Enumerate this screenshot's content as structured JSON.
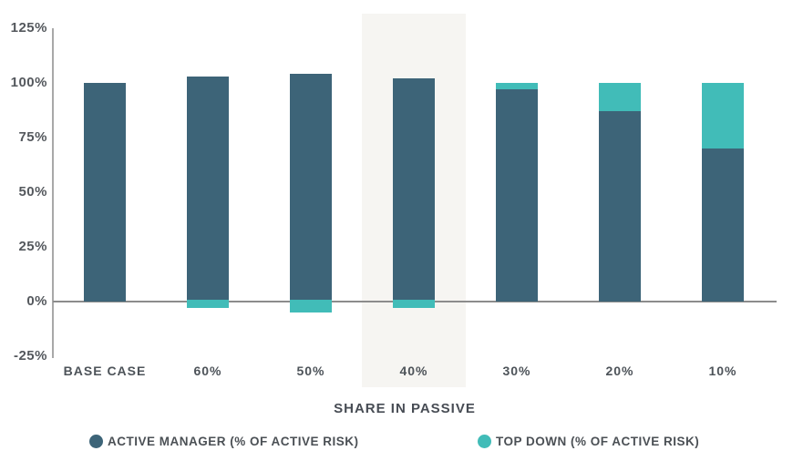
{
  "chart_data": {
    "type": "bar",
    "stacked": true,
    "title": "",
    "xlabel": "SHARE IN PASSIVE",
    "ylabel": "",
    "categories": [
      "BASE CASE",
      "60%",
      "50%",
      "40%",
      "30%",
      "20%",
      "10%"
    ],
    "series": [
      {
        "name": "ACTIVE MANAGER (% OF ACTIVE RISK)",
        "color": "#3D6478",
        "values": [
          100,
          103,
          104,
          102,
          97,
          87,
          70
        ]
      },
      {
        "name": "TOP DOWN (% OF ACTIVE RISK)",
        "color": "#41BCB8",
        "values": [
          0,
          -3,
          -5,
          -3,
          3,
          13,
          30
        ]
      }
    ],
    "y_ticks": [
      {
        "label": "125%",
        "value": 125
      },
      {
        "label": "100%",
        "value": 100
      },
      {
        "label": "75%",
        "value": 75
      },
      {
        "label": "50%",
        "value": 50
      },
      {
        "label": "25%",
        "value": 25
      },
      {
        "label": "0%",
        "value": 0
      },
      {
        "label": "-25%",
        "value": -25
      }
    ],
    "ylim": [
      -25,
      125
    ],
    "grid": false,
    "legend_position": "bottom",
    "highlight_category": "40%",
    "highlight_color": "#F6F5F2",
    "axis_color": "#A8A8A8",
    "zero_line_color": "#8C8C8C",
    "text_color": "#4D5359"
  }
}
